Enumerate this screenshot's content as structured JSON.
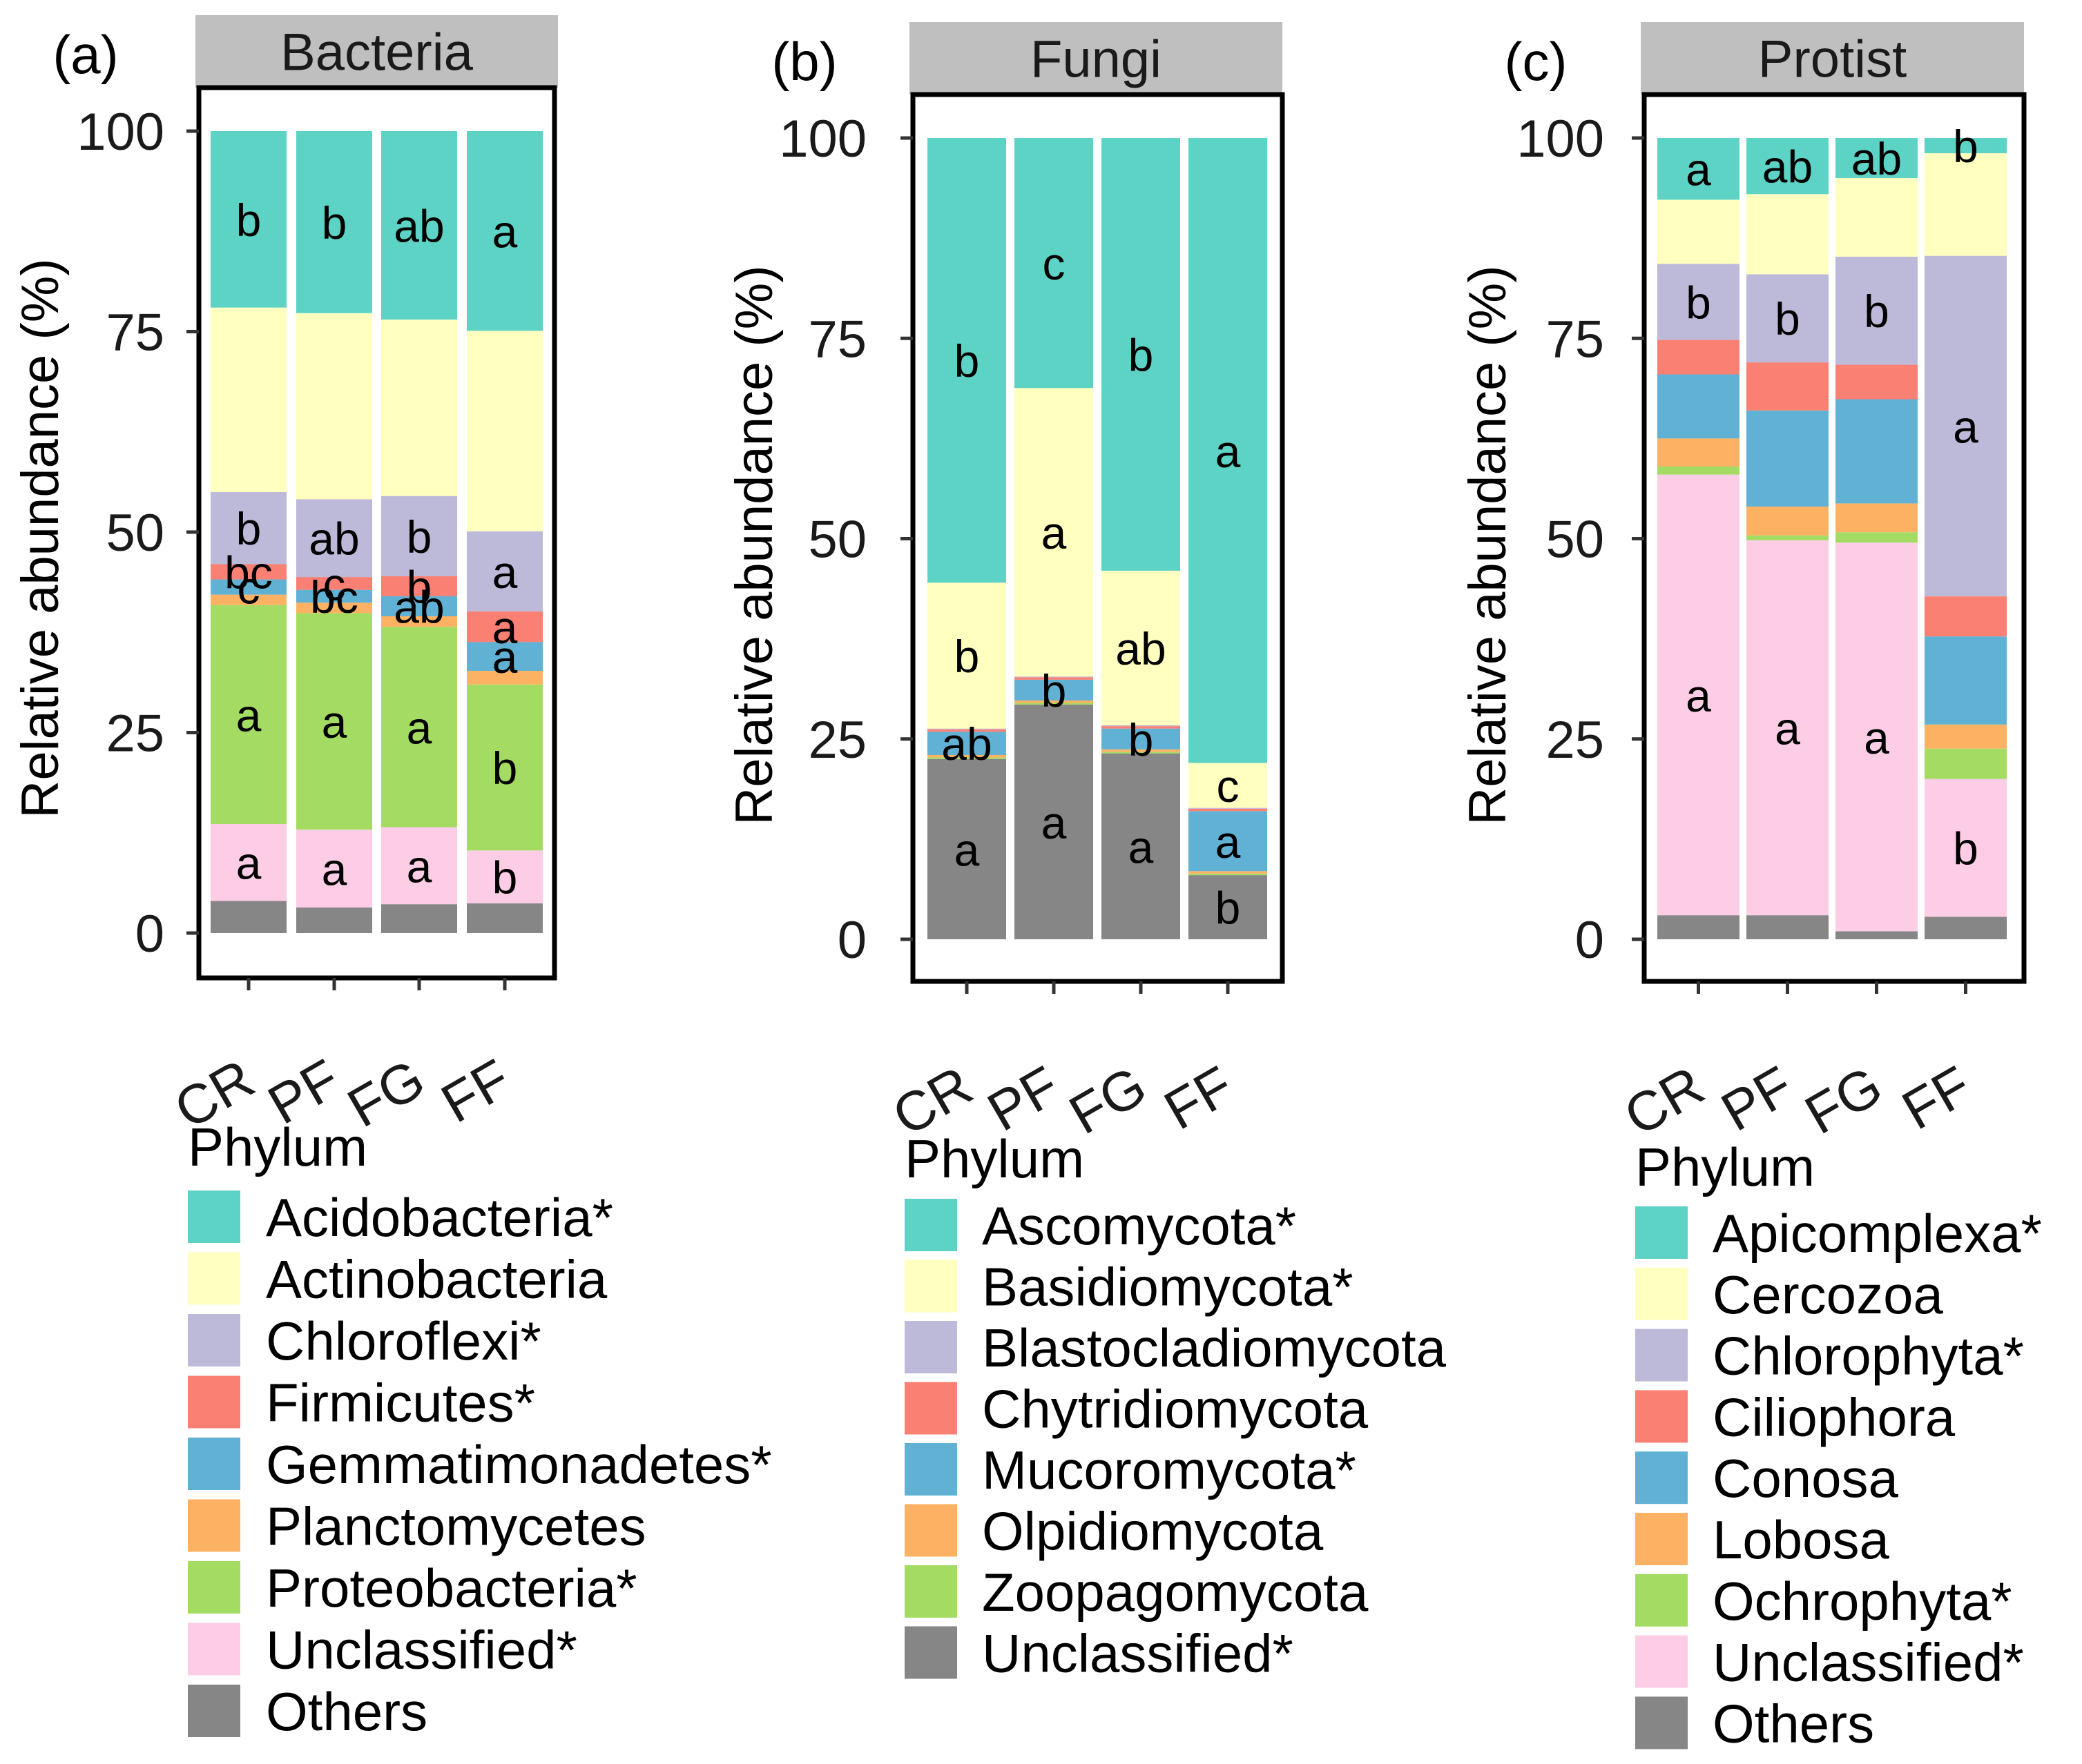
{
  "colors": {
    "teal": "#5DD3C6",
    "yellow": "#FFFFBF",
    "lavender": "#BDB9D9",
    "salmon": "#F98072",
    "blue": "#61B1D4",
    "orange": "#FCB262",
    "green": "#A4DB63",
    "pink": "#FCCDE5",
    "grey": "#868686"
  },
  "chart_data": [
    {
      "type": "bar",
      "stacked": true,
      "panel_label": "(a)",
      "title": "Bacteria",
      "ylabel": "Relative abundance (%)",
      "ylim": [
        0,
        100
      ],
      "yticks": [
        "0",
        "25",
        "50",
        "75",
        "100"
      ],
      "categories": [
        "CR",
        "PF",
        "FG",
        "FF"
      ],
      "legend_title": "Phylum",
      "series": [
        {
          "name": "Others",
          "color": "grey",
          "values": [
            4.0,
            3.2,
            3.6,
            3.7
          ]
        },
        {
          "name": "Unclassified*",
          "color": "pink",
          "values": [
            9.6,
            9.7,
            9.6,
            6.6
          ],
          "letters": [
            "a",
            "a",
            "a",
            "b"
          ]
        },
        {
          "name": "Proteobacteria*",
          "color": "green",
          "values": [
            27.3,
            27.0,
            25.0,
            20.7
          ],
          "letters": [
            "a",
            "a",
            "a",
            "b"
          ]
        },
        {
          "name": "Planctomycetes",
          "color": "orange",
          "values": [
            1.3,
            1.3,
            1.3,
            1.7
          ]
        },
        {
          "name": "Gemmatimonadetes*",
          "color": "blue",
          "values": [
            1.9,
            1.6,
            2.5,
            3.6
          ],
          "letters": [
            "c",
            "bc",
            "ab",
            "a"
          ]
        },
        {
          "name": "Firmicutes*",
          "color": "salmon",
          "values": [
            1.9,
            1.6,
            2.5,
            3.8
          ],
          "letters": [
            "bc",
            "c",
            "b",
            "a"
          ]
        },
        {
          "name": "Chloroflexi*",
          "color": "lavender",
          "values": [
            9.0,
            9.7,
            10.0,
            10.0
          ],
          "letters": [
            "b",
            "ab",
            "b",
            "a"
          ]
        },
        {
          "name": "Actinobacteria",
          "color": "yellow",
          "values": [
            23.0,
            23.2,
            22.0,
            25.0
          ]
        },
        {
          "name": "Acidobacteria*",
          "color": "teal",
          "values": [
            22.0,
            22.7,
            23.5,
            24.9
          ],
          "letters": [
            "b",
            "b",
            "ab",
            "a"
          ]
        }
      ],
      "legend_order": [
        "Acidobacteria*",
        "Actinobacteria",
        "Chloroflexi*",
        "Firmicutes*",
        "Gemmatimonadetes*",
        "Planctomycetes",
        "Proteobacteria*",
        "Unclassified*",
        "Others"
      ]
    },
    {
      "type": "bar",
      "stacked": true,
      "panel_label": "(b)",
      "title": "Fungi",
      "ylabel": "Relative abundance (%)",
      "ylim": [
        0,
        100
      ],
      "yticks": [
        "0",
        "25",
        "50",
        "75",
        "100"
      ],
      "categories": [
        "CR",
        "PF",
        "FG",
        "FF"
      ],
      "legend_title": "Phylum",
      "series": [
        {
          "name": "Unclassified*",
          "color": "grey",
          "values": [
            22.5,
            29.3,
            23.2,
            8.0
          ],
          "letters": [
            "a",
            "a",
            "a",
            "b"
          ]
        },
        {
          "name": "Zoopagomycota",
          "color": "green",
          "values": [
            0.2,
            0.2,
            0.2,
            0.2
          ]
        },
        {
          "name": "Olpidiomycota",
          "color": "orange",
          "values": [
            0.3,
            0.3,
            0.3,
            0.3
          ]
        },
        {
          "name": "Mucoromycota*",
          "color": "blue",
          "values": [
            2.9,
            2.6,
            2.6,
            7.5
          ],
          "letters": [
            "ab",
            "b",
            "b",
            "a"
          ]
        },
        {
          "name": "Chytridiomycota",
          "color": "salmon",
          "values": [
            0.3,
            0.3,
            0.3,
            0.3
          ]
        },
        {
          "name": "Blastocladiomycota",
          "color": "lavender",
          "values": [
            0.1,
            0.1,
            0.1,
            0.1
          ]
        },
        {
          "name": "Basidiomycota*",
          "color": "yellow",
          "values": [
            18.2,
            36.0,
            19.3,
            5.6
          ],
          "letters": [
            "b",
            "a",
            "ab",
            "c"
          ]
        },
        {
          "name": "Ascomycota*",
          "color": "teal",
          "values": [
            55.5,
            31.2,
            54.0,
            78.0
          ],
          "letters": [
            "b",
            "c",
            "b",
            "a"
          ]
        }
      ],
      "legend_order": [
        "Ascomycota*",
        "Basidiomycota*",
        "Blastocladiomycota",
        "Chytridiomycota",
        "Mucoromycota*",
        "Olpidiomycota",
        "Zoopagomycota",
        "Unclassified*"
      ]
    },
    {
      "type": "bar",
      "stacked": true,
      "panel_label": "(c)",
      "title": "Protist",
      "ylabel": "Relative abundance (%)",
      "ylim": [
        0,
        100
      ],
      "yticks": [
        "0",
        "25",
        "50",
        "75",
        "100"
      ],
      "categories": [
        "CR",
        "PF",
        "FG",
        "FF"
      ],
      "legend_title": "Phylum",
      "series": [
        {
          "name": "Others",
          "color": "grey",
          "values": [
            3.0,
            3.0,
            1.0,
            2.8
          ]
        },
        {
          "name": "Unclassified*",
          "color": "pink",
          "values": [
            55.0,
            46.8,
            48.5,
            17.2
          ],
          "letters": [
            "a",
            "a",
            "a",
            "b"
          ]
        },
        {
          "name": "Ochrophyta*",
          "color": "green",
          "values": [
            1.0,
            0.6,
            1.3,
            3.8
          ]
        },
        {
          "name": "Lobosa",
          "color": "orange",
          "values": [
            3.5,
            3.6,
            3.6,
            3.0
          ]
        },
        {
          "name": "Conosa",
          "color": "blue",
          "values": [
            8.0,
            12.0,
            13.0,
            11.0
          ]
        },
        {
          "name": "Ciliophora",
          "color": "salmon",
          "values": [
            4.3,
            6.0,
            4.3,
            5.0
          ]
        },
        {
          "name": "Chlorophyta*",
          "color": "lavender",
          "values": [
            9.5,
            11.0,
            13.5,
            42.5
          ],
          "letters": [
            "b",
            "b",
            "b",
            "a"
          ]
        },
        {
          "name": "Cercozoa",
          "color": "yellow",
          "values": [
            8.0,
            10.0,
            9.8,
            12.8
          ]
        },
        {
          "name": "Apicomplexa*",
          "color": "teal",
          "values": [
            7.7,
            7.0,
            5.0,
            1.9
          ],
          "letters": [
            "a",
            "ab",
            "ab",
            "b"
          ]
        }
      ],
      "legend_order": [
        "Apicomplexa*",
        "Cercozoa",
        "Chlorophyta*",
        "Ciliophora",
        "Conosa",
        "Lobosa",
        "Ochrophyta*",
        "Unclassified*",
        "Others"
      ]
    }
  ]
}
